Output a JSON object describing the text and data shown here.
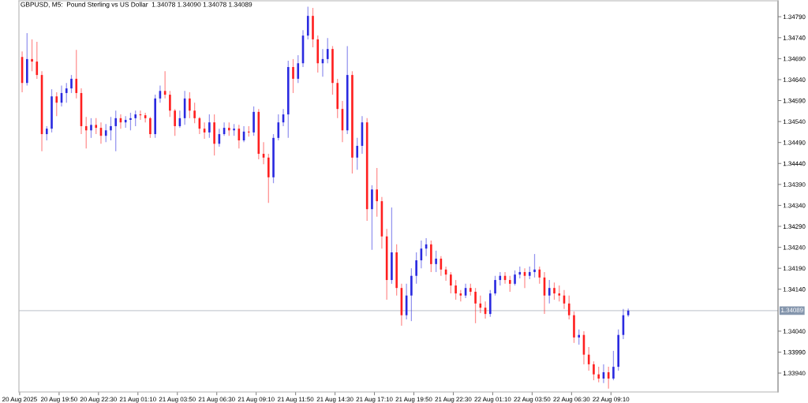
{
  "chart_data": {
    "type": "candlestick",
    "title": "GBPUSD, M5:  Pound Sterling vs US Dollar  1.34078 1.34090 1.34078 1.34089",
    "x": [
      "2025-08-20T17:20",
      "2025-08-20T17:40",
      "2025-08-20T18:00",
      "2025-08-20T18:20",
      "2025-08-20T18:40",
      "2025-08-20T19:00",
      "2025-08-20T19:20",
      "2025-08-20T19:40",
      "2025-08-20T20:00",
      "2025-08-20T20:20",
      "2025-08-20T20:40",
      "2025-08-20T21:00",
      "2025-08-20T21:20",
      "2025-08-20T21:40",
      "2025-08-20T22:00",
      "2025-08-20T22:20",
      "2025-08-20T22:40",
      "2025-08-20T23:00",
      "2025-08-20T23:20",
      "2025-08-20T23:40",
      "2025-08-21T00:00",
      "2025-08-21T00:20",
      "2025-08-21T00:40",
      "2025-08-21T01:00",
      "2025-08-21T01:20",
      "2025-08-21T01:40",
      "2025-08-21T02:00",
      "2025-08-21T02:20",
      "2025-08-21T02:40",
      "2025-08-21T03:00",
      "2025-08-21T03:20",
      "2025-08-21T03:40",
      "2025-08-21T04:00",
      "2025-08-21T04:20",
      "2025-08-21T04:40",
      "2025-08-21T05:00",
      "2025-08-21T05:20",
      "2025-08-21T05:40",
      "2025-08-21T06:00",
      "2025-08-21T06:20",
      "2025-08-21T06:40",
      "2025-08-21T07:00",
      "2025-08-21T07:20",
      "2025-08-21T07:40",
      "2025-08-21T08:00",
      "2025-08-21T08:20",
      "2025-08-21T08:40",
      "2025-08-21T09:00",
      "2025-08-21T09:20",
      "2025-08-21T09:40",
      "2025-08-21T10:00",
      "2025-08-21T10:20",
      "2025-08-21T10:40",
      "2025-08-21T11:00",
      "2025-08-21T11:20",
      "2025-08-21T11:40",
      "2025-08-21T12:00",
      "2025-08-21T12:20",
      "2025-08-21T12:40",
      "2025-08-21T13:00",
      "2025-08-21T13:20",
      "2025-08-21T13:40",
      "2025-08-21T14:00",
      "2025-08-21T14:20",
      "2025-08-21T14:40",
      "2025-08-21T15:00",
      "2025-08-21T15:20",
      "2025-08-21T15:40",
      "2025-08-21T16:00",
      "2025-08-21T16:20",
      "2025-08-21T16:40",
      "2025-08-21T17:00",
      "2025-08-21T17:20",
      "2025-08-21T17:40",
      "2025-08-21T18:00",
      "2025-08-21T18:20",
      "2025-08-21T18:40",
      "2025-08-21T19:00",
      "2025-08-21T19:20",
      "2025-08-21T19:40",
      "2025-08-21T20:00",
      "2025-08-21T20:20",
      "2025-08-21T20:40",
      "2025-08-21T21:00",
      "2025-08-21T21:20",
      "2025-08-21T21:40",
      "2025-08-21T22:00",
      "2025-08-21T22:20",
      "2025-08-21T22:40",
      "2025-08-21T23:00",
      "2025-08-21T23:20",
      "2025-08-21T23:40",
      "2025-08-22T00:00",
      "2025-08-22T00:20",
      "2025-08-22T00:40",
      "2025-08-22T01:00",
      "2025-08-22T01:20",
      "2025-08-22T01:40",
      "2025-08-22T02:00",
      "2025-08-22T02:20",
      "2025-08-22T02:40",
      "2025-08-22T03:00",
      "2025-08-22T03:20",
      "2025-08-22T03:40",
      "2025-08-22T04:00",
      "2025-08-22T04:20",
      "2025-08-22T04:40",
      "2025-08-22T05:00",
      "2025-08-22T05:20",
      "2025-08-22T05:40",
      "2025-08-22T06:00",
      "2025-08-22T06:20",
      "2025-08-22T06:40",
      "2025-08-22T07:00",
      "2025-08-22T07:20",
      "2025-08-22T07:40",
      "2025-08-22T08:00",
      "2025-08-22T08:20",
      "2025-08-22T08:40",
      "2025-08-22T09:00",
      "2025-08-22T09:20",
      "2025-08-22T09:40",
      "2025-08-22T10:00",
      "2025-08-22T10:20"
    ],
    "ohlc": [
      [
        1.34694,
        1.34707,
        1.3461,
        1.34632
      ],
      [
        1.34632,
        1.34751,
        1.34626,
        1.34689
      ],
      [
        1.34689,
        1.34736,
        1.3466,
        1.34683
      ],
      [
        1.34683,
        1.3473,
        1.34642,
        1.34651
      ],
      [
        1.34651,
        1.3466,
        1.34469,
        1.3451
      ],
      [
        1.3451,
        1.34529,
        1.34495,
        1.34523
      ],
      [
        1.34523,
        1.34617,
        1.34514,
        1.346
      ],
      [
        1.346,
        1.3461,
        1.34553,
        1.34585
      ],
      [
        1.34585,
        1.34626,
        1.34576,
        1.34608
      ],
      [
        1.34608,
        1.34632,
        1.34585,
        1.34619
      ],
      [
        1.34619,
        1.34651,
        1.34608,
        1.34642
      ],
      [
        1.34642,
        1.34711,
        1.34595,
        1.34608
      ],
      [
        1.34608,
        1.34619,
        1.3451,
        1.34529
      ],
      [
        1.34529,
        1.34551,
        1.34476,
        1.34519
      ],
      [
        1.34519,
        1.34548,
        1.34501,
        1.34532
      ],
      [
        1.34532,
        1.34548,
        1.3451,
        1.34525
      ],
      [
        1.34525,
        1.34538,
        1.34487,
        1.34506
      ],
      [
        1.34506,
        1.34534,
        1.34491,
        1.34519
      ],
      [
        1.34519,
        1.34551,
        1.34495,
        1.34529
      ],
      [
        1.34529,
        1.34566,
        1.34469,
        1.34548
      ],
      [
        1.34548,
        1.34557,
        1.34523,
        1.34538
      ],
      [
        1.34538,
        1.34553,
        1.34525,
        1.34544
      ],
      [
        1.34544,
        1.34561,
        1.34519,
        1.34548
      ],
      [
        1.34548,
        1.34566,
        1.34529,
        1.34557
      ],
      [
        1.34557,
        1.34566,
        1.34544,
        1.34555
      ],
      [
        1.34555,
        1.34561,
        1.34538,
        1.34548
      ],
      [
        1.34548,
        1.34551,
        1.34501,
        1.3451
      ],
      [
        1.3451,
        1.34604,
        1.34501,
        1.34595
      ],
      [
        1.34595,
        1.34626,
        1.34585,
        1.34613
      ],
      [
        1.34613,
        1.3466,
        1.34595,
        1.34604
      ],
      [
        1.34604,
        1.34613,
        1.34551,
        1.34566
      ],
      [
        1.34566,
        1.3457,
        1.34506,
        1.34529
      ],
      [
        1.34529,
        1.34566,
        1.34525,
        1.34548
      ],
      [
        1.34548,
        1.34613,
        1.34532,
        1.34595
      ],
      [
        1.34595,
        1.3461,
        1.34548,
        1.34566
      ],
      [
        1.34566,
        1.34585,
        1.34536,
        1.34548
      ],
      [
        1.34548,
        1.34551,
        1.3451,
        1.34523
      ],
      [
        1.34523,
        1.34538,
        1.34499,
        1.34514
      ],
      [
        1.34514,
        1.34557,
        1.34501,
        1.34538
      ],
      [
        1.34538,
        1.34557,
        1.34459,
        1.34487
      ],
      [
        1.34487,
        1.34523,
        1.3448,
        1.3451
      ],
      [
        1.3451,
        1.34538,
        1.34506,
        1.34525
      ],
      [
        1.34525,
        1.34538,
        1.34506,
        1.34519
      ],
      [
        1.34519,
        1.34534,
        1.34506,
        1.34523
      ],
      [
        1.34523,
        1.34532,
        1.34476,
        1.34495
      ],
      [
        1.34495,
        1.34529,
        1.34491,
        1.34516
      ],
      [
        1.34516,
        1.34529,
        1.34504,
        1.34514
      ],
      [
        1.34514,
        1.34576,
        1.34506,
        1.34563
      ],
      [
        1.34563,
        1.3457,
        1.3445,
        1.34463
      ],
      [
        1.34463,
        1.34491,
        1.34438,
        1.34454
      ],
      [
        1.34454,
        1.34463,
        1.34346,
        1.34407
      ],
      [
        1.34407,
        1.3451,
        1.34393,
        1.34501
      ],
      [
        1.34501,
        1.34557,
        1.34495,
        1.34538
      ],
      [
        1.34538,
        1.3457,
        1.34529,
        1.34557
      ],
      [
        1.34557,
        1.34685,
        1.34501,
        1.3467
      ],
      [
        1.3467,
        1.34689,
        1.34608,
        1.34642
      ],
      [
        1.34642,
        1.34698,
        1.34632,
        1.34679
      ],
      [
        1.34679,
        1.34758,
        1.3467,
        1.34745
      ],
      [
        1.34745,
        1.34814,
        1.34736,
        1.34792
      ],
      [
        1.34792,
        1.34811,
        1.34717,
        1.34736
      ],
      [
        1.34736,
        1.34745,
        1.34657,
        1.34679
      ],
      [
        1.34679,
        1.34713,
        1.34647,
        1.34689
      ],
      [
        1.34689,
        1.34739,
        1.34679,
        1.34713
      ],
      [
        1.34713,
        1.3472,
        1.34604,
        1.34632
      ],
      [
        1.34632,
        1.34642,
        1.34548,
        1.3457
      ],
      [
        1.3457,
        1.34589,
        1.34491,
        1.34519
      ],
      [
        1.34519,
        1.3472,
        1.3451,
        1.34651
      ],
      [
        1.34651,
        1.3466,
        1.34416,
        1.34454
      ],
      [
        1.34454,
        1.34501,
        1.34425,
        1.34482
      ],
      [
        1.34482,
        1.34553,
        1.34463,
        1.34538
      ],
      [
        1.34538,
        1.34548,
        1.34303,
        1.34331
      ],
      [
        1.34331,
        1.34388,
        1.34234,
        1.34378
      ],
      [
        1.34378,
        1.34429,
        1.34313,
        1.3435
      ],
      [
        1.3435,
        1.3436,
        1.34237,
        1.34266
      ],
      [
        1.34266,
        1.34284,
        1.34115,
        1.34162
      ],
      [
        1.34162,
        1.34335,
        1.34153,
        1.34228
      ],
      [
        1.34228,
        1.34247,
        1.34125,
        1.34143
      ],
      [
        1.34143,
        1.34153,
        1.34053,
        1.34078
      ],
      [
        1.34078,
        1.34153,
        1.34068,
        1.34125
      ],
      [
        1.34125,
        1.3419,
        1.34064,
        1.34172
      ],
      [
        1.34172,
        1.34228,
        1.34153,
        1.34209
      ],
      [
        1.34209,
        1.34256,
        1.3419,
        1.34237
      ],
      [
        1.34237,
        1.34262,
        1.34219,
        1.34247
      ],
      [
        1.34247,
        1.34256,
        1.34181,
        1.342
      ],
      [
        1.342,
        1.34232,
        1.34181,
        1.34213
      ],
      [
        1.34213,
        1.34219,
        1.34172,
        1.34187
      ],
      [
        1.34187,
        1.34194,
        1.3416,
        1.34175
      ],
      [
        1.34175,
        1.34181,
        1.3413,
        1.34149
      ],
      [
        1.34149,
        1.34162,
        1.34115,
        1.3413
      ],
      [
        1.3413,
        1.34138,
        1.34111,
        1.34125
      ],
      [
        1.34125,
        1.34153,
        1.34119,
        1.34143
      ],
      [
        1.34143,
        1.34153,
        1.34125,
        1.34134
      ],
      [
        1.34134,
        1.34143,
        1.34059,
        1.34106
      ],
      [
        1.34106,
        1.34125,
        1.34083,
        1.34096
      ],
      [
        1.34096,
        1.34111,
        1.3407,
        1.34081
      ],
      [
        1.34081,
        1.34138,
        1.34074,
        1.3413
      ],
      [
        1.3413,
        1.34172,
        1.34125,
        1.34162
      ],
      [
        1.34162,
        1.34181,
        1.34149,
        1.34172
      ],
      [
        1.34172,
        1.34181,
        1.34153,
        1.34162
      ],
      [
        1.34162,
        1.34172,
        1.34134,
        1.34153
      ],
      [
        1.34153,
        1.34185,
        1.34149,
        1.34175
      ],
      [
        1.34175,
        1.34194,
        1.34166,
        1.34181
      ],
      [
        1.34181,
        1.3419,
        1.34143,
        1.34172
      ],
      [
        1.34172,
        1.34194,
        1.34164,
        1.34181
      ],
      [
        1.34181,
        1.34224,
        1.34168,
        1.34187
      ],
      [
        1.34187,
        1.34194,
        1.34153,
        1.34168
      ],
      [
        1.34168,
        1.34181,
        1.34081,
        1.34125
      ],
      [
        1.34125,
        1.34162,
        1.34106,
        1.34143
      ],
      [
        1.34143,
        1.34156,
        1.34115,
        1.3413
      ],
      [
        1.3413,
        1.34149,
        1.34111,
        1.34125
      ],
      [
        1.34125,
        1.34138,
        1.34093,
        1.34106
      ],
      [
        1.34106,
        1.34125,
        1.34068,
        1.34078
      ],
      [
        1.34078,
        1.34087,
        1.34012,
        1.34025
      ],
      [
        1.34025,
        1.34044,
        1.34008,
        1.34031
      ],
      [
        1.34031,
        1.3404,
        1.33961,
        1.33984
      ],
      [
        1.33984,
        1.34002,
        1.33946,
        1.33961
      ],
      [
        1.33961,
        1.33968,
        1.33923,
        1.33937
      ],
      [
        1.33937,
        1.33955,
        1.33918,
        1.33927
      ],
      [
        1.33927,
        1.33961,
        1.33916,
        1.33942
      ],
      [
        1.33942,
        1.33955,
        1.33903,
        1.33927
      ],
      [
        1.33927,
        1.33993,
        1.33923,
        1.33955
      ],
      [
        1.33955,
        1.34044,
        1.33946,
        1.34031
      ],
      [
        1.34031,
        1.34093,
        1.34021,
        1.34078
      ],
      [
        1.34078,
        1.34094,
        1.34074,
        1.34089
      ]
    ],
    "colors": [
      "#ff1f1f",
      "#2a2ae0",
      "#ff1f1f",
      "#ff1f1f",
      "#ff1f1f",
      "#2a2ae0",
      "#2a2ae0",
      "#ff1f1f",
      "#2a2ae0",
      "#2a2ae0",
      "#2a2ae0",
      "#ff1f1f",
      "#ff1f1f",
      "#ff1f1f",
      "#2a2ae0",
      "#ff1f1f",
      "#ff1f1f",
      "#2a2ae0",
      "#2a2ae0",
      "#2a2ae0",
      "#ff1f1f",
      "#2a2ae0",
      "#2a2ae0",
      "#2a2ae0",
      "#ff1f1f",
      "#ff1f1f",
      "#ff1f1f",
      "#2a2ae0",
      "#2a2ae0",
      "#ff1f1f",
      "#ff1f1f",
      "#ff1f1f",
      "#2a2ae0",
      "#2a2ae0",
      "#ff1f1f",
      "#ff1f1f",
      "#ff1f1f",
      "#ff1f1f",
      "#2a2ae0",
      "#ff1f1f",
      "#2a2ae0",
      "#2a2ae0",
      "#ff1f1f",
      "#2a2ae0",
      "#ff1f1f",
      "#2a2ae0",
      "#ff1f1f",
      "#2a2ae0",
      "#ff1f1f",
      "#ff1f1f",
      "#ff1f1f",
      "#2a2ae0",
      "#2a2ae0",
      "#2a2ae0",
      "#2a2ae0",
      "#ff1f1f",
      "#2a2ae0",
      "#2a2ae0",
      "#2a2ae0",
      "#ff1f1f",
      "#ff1f1f",
      "#2a2ae0",
      "#2a2ae0",
      "#ff1f1f",
      "#ff1f1f",
      "#ff1f1f",
      "#2a2ae0",
      "#ff1f1f",
      "#2a2ae0",
      "#2a2ae0",
      "#ff1f1f",
      "#2a2ae0",
      "#ff1f1f",
      "#ff1f1f",
      "#ff1f1f",
      "#2a2ae0",
      "#ff1f1f",
      "#ff1f1f",
      "#2a2ae0",
      "#2a2ae0",
      "#2a2ae0",
      "#2a2ae0",
      "#2a2ae0",
      "#ff1f1f",
      "#2a2ae0",
      "#ff1f1f",
      "#ff1f1f",
      "#ff1f1f",
      "#ff1f1f",
      "#ff1f1f",
      "#2a2ae0",
      "#ff1f1f",
      "#ff1f1f",
      "#ff1f1f",
      "#ff1f1f",
      "#2a2ae0",
      "#2a2ae0",
      "#2a2ae0",
      "#ff1f1f",
      "#ff1f1f",
      "#2a2ae0",
      "#2a2ae0",
      "#ff1f1f",
      "#2a2ae0",
      "#2a2ae0",
      "#ff1f1f",
      "#ff1f1f",
      "#2a2ae0",
      "#ff1f1f",
      "#ff1f1f",
      "#ff1f1f",
      "#ff1f1f",
      "#ff1f1f",
      "#2a2ae0",
      "#ff1f1f",
      "#ff1f1f",
      "#ff1f1f",
      "#ff1f1f",
      "#2a2ae0",
      "#ff1f1f",
      "#2a2ae0",
      "#2a2ae0",
      "#2a2ae0",
      "#2a2ae0"
    ],
    "xlim": [
      "2025-08-20T17:07",
      "2025-08-22T20:28"
    ],
    "xticks": [
      {
        "value": "2025-08-20T17:10",
        "label": "20 Aug 2025"
      },
      {
        "value": "2025-08-20T19:50",
        "label": "20 Aug 19:50"
      },
      {
        "value": "2025-08-20T22:30",
        "label": "20 Aug 22:30"
      },
      {
        "value": "2025-08-21T01:10",
        "label": "21 Aug 01:10"
      },
      {
        "value": "2025-08-21T03:50",
        "label": "21 Aug 03:50"
      },
      {
        "value": "2025-08-21T06:30",
        "label": "21 Aug 06:30"
      },
      {
        "value": "2025-08-21T09:10",
        "label": "21 Aug 09:10"
      },
      {
        "value": "2025-08-21T11:50",
        "label": "21 Aug 11:50"
      },
      {
        "value": "2025-08-21T14:30",
        "label": "21 Aug 14:30"
      },
      {
        "value": "2025-08-21T17:10",
        "label": "21 Aug 17:10"
      },
      {
        "value": "2025-08-21T19:50",
        "label": "21 Aug 19:50"
      },
      {
        "value": "2025-08-21T22:30",
        "label": "21 Aug 22:30"
      },
      {
        "value": "2025-08-22T01:10",
        "label": "22 Aug 01:10"
      },
      {
        "value": "2025-08-22T03:50",
        "label": "22 Aug 03:50"
      },
      {
        "value": "2025-08-22T06:30",
        "label": "22 Aug 06:30"
      },
      {
        "value": "2025-08-22T09:10",
        "label": "22 Aug 09:10"
      }
    ],
    "ylim": [
      1.33895,
      1.34828
    ],
    "yticks": [
      {
        "value": 1.3394,
        "label": "1.33940"
      },
      {
        "value": 1.3399,
        "label": "1.33990"
      },
      {
        "value": 1.3404,
        "label": "1.34040"
      },
      {
        "value": 1.3414,
        "label": "1.34140"
      },
      {
        "value": 1.3419,
        "label": "1.34190"
      },
      {
        "value": 1.3424,
        "label": "1.34240"
      },
      {
        "value": 1.3429,
        "label": "1.34290"
      },
      {
        "value": 1.3434,
        "label": "1.34340"
      },
      {
        "value": 1.3439,
        "label": "1.34390"
      },
      {
        "value": 1.3444,
        "label": "1.34440"
      },
      {
        "value": 1.3449,
        "label": "1.34490"
      },
      {
        "value": 1.3454,
        "label": "1.34540"
      },
      {
        "value": 1.3459,
        "label": "1.34590"
      },
      {
        "value": 1.3464,
        "label": "1.34640"
      },
      {
        "value": 1.3469,
        "label": "1.34690"
      },
      {
        "value": 1.3474,
        "label": "1.34740"
      },
      {
        "value": 1.3479,
        "label": "1.34790"
      }
    ],
    "ref_lines": [
      {
        "axis": "y",
        "value": 1.34089,
        "label": "1.34089",
        "color": "#c8ccd4"
      }
    ]
  }
}
